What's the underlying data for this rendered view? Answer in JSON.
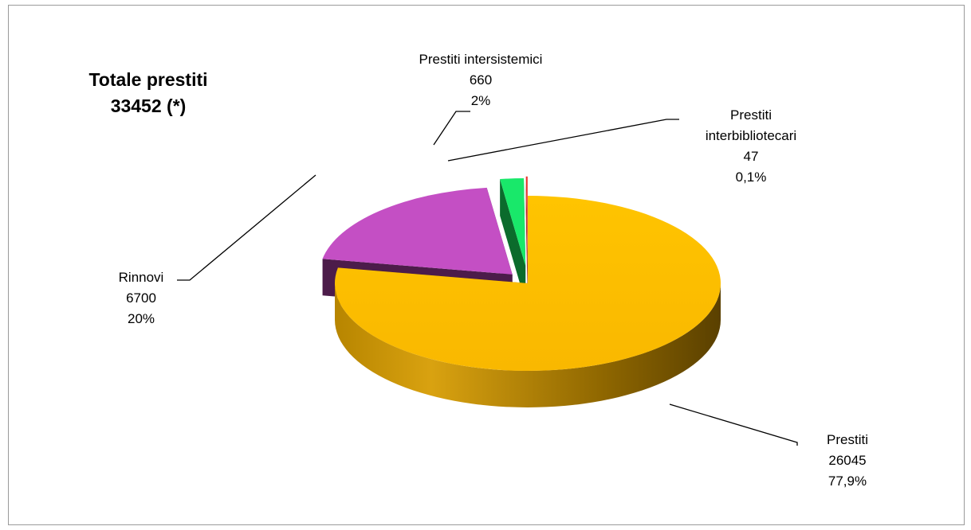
{
  "chart_data": {
    "type": "pie",
    "style": "3d-exploded",
    "total_title": [
      "Totale prestiti",
      "33452 (*)"
    ],
    "total_value": 33452,
    "slices": [
      {
        "name": "Prestiti",
        "value": 26045,
        "percent_label": "77,9%",
        "color": "#FFC000",
        "label_lines": [
          "Prestiti",
          "26045",
          "77,9%"
        ]
      },
      {
        "name": "Rinnovi",
        "value": 6700,
        "percent_label": "20%",
        "color": "#C44FC4",
        "label_lines": [
          "Rinnovi",
          "6700",
          "20%"
        ]
      },
      {
        "name": "Prestiti intersistemici",
        "value": 660,
        "percent_label": "2%",
        "color": "#19E86A",
        "label_lines": [
          "Prestiti intersistemici",
          "660",
          "2%"
        ]
      },
      {
        "name": "Prestiti interbibliotecari",
        "value": 47,
        "percent_label": "0,1%",
        "color": "#E8342B",
        "label_lines": [
          "Prestiti",
          "interbibliotecari",
          "47",
          "0,1%"
        ]
      }
    ],
    "legend": "none"
  }
}
